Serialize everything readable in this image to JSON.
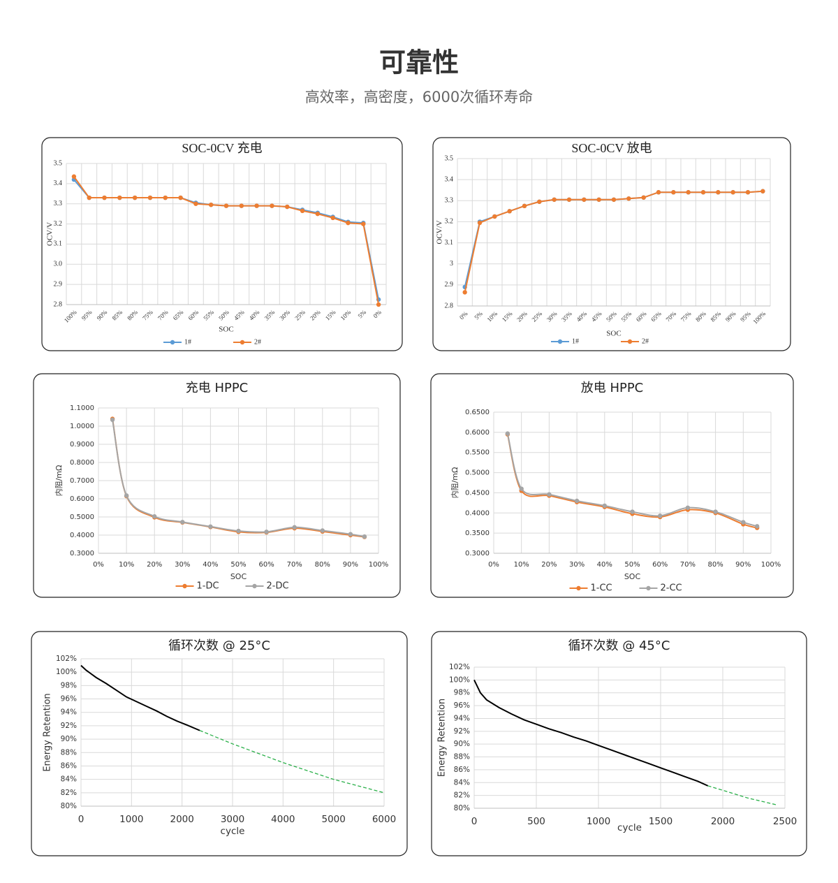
{
  "header": {
    "title": "可靠性",
    "subtitle": "高效率，高密度，6000次循环寿命"
  },
  "chart_data": [
    {
      "type": "line",
      "title": "SOC-0CV 充电",
      "x_label": "SOC",
      "y_label": "OCV/V",
      "categories": [
        "100%",
        "95%",
        "90%",
        "85%",
        "80%",
        "75%",
        "70%",
        "65%",
        "60%",
        "55%",
        "50%",
        "45%",
        "40%",
        "35%",
        "30%",
        "25%",
        "20%",
        "15%",
        "10%",
        "5%",
        "0%"
      ],
      "ylim": [
        2.8,
        3.5
      ],
      "yticks": [
        2.8,
        2.9,
        {
          "value": 3,
          "label": "3.0"
        },
        3.1,
        3.2,
        3.3,
        3.4,
        3.5
      ],
      "grid": true,
      "markers": true,
      "legend": "bottom",
      "series": [
        {
          "name": "1#",
          "color": "#5b9bd5",
          "values": [
            3.42,
            3.33,
            3.33,
            3.33,
            3.33,
            3.33,
            3.33,
            3.33,
            3.305,
            3.295,
            3.29,
            3.29,
            3.29,
            3.29,
            3.285,
            3.27,
            3.255,
            3.235,
            3.21,
            3.205,
            2.825
          ]
        },
        {
          "name": "2#",
          "color": "#ed7d31",
          "values": [
            3.435,
            3.33,
            3.33,
            3.33,
            3.33,
            3.33,
            3.33,
            3.33,
            3.3,
            3.295,
            3.29,
            3.29,
            3.29,
            3.29,
            3.285,
            3.265,
            3.25,
            3.23,
            3.205,
            3.2,
            2.8
          ]
        }
      ]
    },
    {
      "type": "line",
      "title": "SOC-0CV  放电",
      "x_label": "SOC",
      "y_label": "OCV/V",
      "categories": [
        "0%",
        "5%",
        "10%",
        "15%",
        "20%",
        "25%",
        "30%",
        "35%",
        "40%",
        "45%",
        "50%",
        "55%",
        "60%",
        "65%",
        "70%",
        "75%",
        "80%",
        "85%",
        "90%",
        "95%",
        "100%"
      ],
      "ylim": [
        2.8,
        3.5
      ],
      "yticks": [
        2.8,
        2.9,
        3,
        3.1,
        3.2,
        3.3,
        3.4,
        3.5
      ],
      "grid": true,
      "markers": true,
      "legend": "bottom",
      "series": [
        {
          "name": "1#",
          "color": "#5b9bd5",
          "values": [
            2.89,
            3.2,
            3.225,
            3.25,
            3.275,
            3.295,
            3.305,
            3.305,
            3.305,
            3.305,
            3.305,
            3.31,
            3.315,
            3.34,
            3.34,
            3.34,
            3.34,
            3.34,
            3.34,
            3.34,
            3.345
          ]
        },
        {
          "name": "2#",
          "color": "#ed7d31",
          "values": [
            2.865,
            3.195,
            3.225,
            3.25,
            3.275,
            3.295,
            3.305,
            3.305,
            3.305,
            3.305,
            3.305,
            3.31,
            3.315,
            3.34,
            3.34,
            3.34,
            3.34,
            3.34,
            3.34,
            3.34,
            3.345
          ]
        }
      ]
    },
    {
      "type": "line",
      "title": "充电 HPPC",
      "x_label": "SOC",
      "y_label": "内阻/mΩ",
      "x": [
        5,
        10,
        20,
        30,
        40,
        50,
        60,
        70,
        80,
        90,
        95
      ],
      "xlim": [
        0,
        100
      ],
      "xticks": [
        {
          "value": 0,
          "label": "0%"
        },
        {
          "value": 10,
          "label": "10%"
        },
        {
          "value": 20,
          "label": "20%"
        },
        {
          "value": 30,
          "label": "30%"
        },
        {
          "value": 40,
          "label": "40%"
        },
        {
          "value": 50,
          "label": "50%"
        },
        {
          "value": 60,
          "label": "60%"
        },
        {
          "value": 70,
          "label": "70%"
        },
        {
          "value": 80,
          "label": "80%"
        },
        {
          "value": 90,
          "label": "90%"
        },
        {
          "value": 100,
          "label": "100%"
        }
      ],
      "ylim": [
        0.3,
        1.1
      ],
      "yticks": [
        {
          "value": 0.3,
          "label": "0.3000"
        },
        {
          "value": 0.4,
          "label": "0.4000"
        },
        {
          "value": 0.5,
          "label": "0.5000"
        },
        {
          "value": 0.6,
          "label": "0.6000"
        },
        {
          "value": 0.7,
          "label": "0.7000"
        },
        {
          "value": 0.8,
          "label": "0.8000"
        },
        {
          "value": 0.9,
          "label": "0.9000"
        },
        {
          "value": 1,
          "label": "1.0000"
        },
        {
          "value": 1.1,
          "label": "1.1000"
        }
      ],
      "grid": true,
      "markers": true,
      "smooth": true,
      "legend": "bottom",
      "series": [
        {
          "name": "1-DC",
          "color": "#ed7d31",
          "values": [
            1.04,
            0.615,
            0.498,
            0.47,
            0.445,
            0.418,
            0.415,
            0.438,
            0.42,
            0.4,
            0.39
          ]
        },
        {
          "name": "2-DC",
          "color": "#a5a5a5",
          "values": [
            1.035,
            0.618,
            0.503,
            0.472,
            0.447,
            0.423,
            0.418,
            0.443,
            0.425,
            0.405,
            0.392
          ]
        }
      ]
    },
    {
      "type": "line",
      "title": "放电 HPPC",
      "x_label": "SOC",
      "y_label": "内阻/mΩ",
      "x": [
        5,
        10,
        20,
        30,
        40,
        50,
        60,
        70,
        80,
        90,
        95
      ],
      "xlim": [
        0,
        100
      ],
      "xticks": [
        {
          "value": 0,
          "label": "0%"
        },
        {
          "value": 10,
          "label": "10%"
        },
        {
          "value": 20,
          "label": "20%"
        },
        {
          "value": 30,
          "label": "30%"
        },
        {
          "value": 40,
          "label": "40%"
        },
        {
          "value": 50,
          "label": "50%"
        },
        {
          "value": 60,
          "label": "60%"
        },
        {
          "value": 70,
          "label": "70%"
        },
        {
          "value": 80,
          "label": "80%"
        },
        {
          "value": 90,
          "label": "90%"
        },
        {
          "value": 100,
          "label": "100%"
        }
      ],
      "ylim": [
        0.3,
        0.65
      ],
      "yticks": [
        {
          "value": 0.3,
          "label": "0.3000"
        },
        {
          "value": 0.35,
          "label": "0.3500"
        },
        {
          "value": 0.4,
          "label": "0.4000"
        },
        {
          "value": 0.45,
          "label": "0.4500"
        },
        {
          "value": 0.5,
          "label": "0.5000"
        },
        {
          "value": 0.55,
          "label": "0.5500"
        },
        {
          "value": 0.6,
          "label": "0.6000"
        },
        {
          "value": 0.65,
          "label": "0.6500"
        }
      ],
      "grid": true,
      "markers": true,
      "smooth": true,
      "legend": "bottom",
      "series": [
        {
          "name": "1-CC",
          "color": "#ed7d31",
          "values": [
            0.595,
            0.455,
            0.443,
            0.427,
            0.415,
            0.398,
            0.39,
            0.408,
            0.4,
            0.372,
            0.363
          ]
        },
        {
          "name": "2-CC",
          "color": "#a5a5a5",
          "values": [
            0.597,
            0.46,
            0.446,
            0.43,
            0.418,
            0.403,
            0.393,
            0.413,
            0.403,
            0.377,
            0.367
          ]
        }
      ]
    },
    {
      "type": "line",
      "title": "循环次数 @ 25°C",
      "x_label": "cycle",
      "y_label": "Energy Retention",
      "xlim": [
        0,
        6000
      ],
      "xticks": [
        0,
        1000,
        2000,
        3000,
        4000,
        5000,
        6000
      ],
      "ylim": [
        80,
        102
      ],
      "yticks": [
        {
          "value": 80,
          "label": "80%"
        },
        {
          "value": 82,
          "label": "82%"
        },
        {
          "value": 84,
          "label": "84%"
        },
        {
          "value": 86,
          "label": "86%"
        },
        {
          "value": 88,
          "label": "88%"
        },
        {
          "value": 90,
          "label": "90%"
        },
        {
          "value": 92,
          "label": "92%"
        },
        {
          "value": 94,
          "label": "94%"
        },
        {
          "value": 96,
          "label": "96%"
        },
        {
          "value": 98,
          "label": "98%"
        },
        {
          "value": 100,
          "label": "100%"
        },
        {
          "value": 102,
          "label": "102%"
        }
      ],
      "grid": true,
      "series": [
        {
          "color": "#000000",
          "x": [
            0,
            100,
            300,
            500,
            700,
            900,
            1100,
            1300,
            1500,
            1700,
            1900,
            2100,
            2350
          ],
          "values": [
            101,
            100.3,
            99.2,
            98.3,
            97.3,
            96.3,
            95.6,
            94.9,
            94.2,
            93.4,
            92.7,
            92.1,
            91.3
          ]
        },
        {
          "color": "#2bb04a",
          "dash": true,
          "x": [
            2350,
            3000,
            4000,
            5000,
            6000
          ],
          "values": [
            91.3,
            89.3,
            86.5,
            84,
            82
          ]
        }
      ]
    },
    {
      "type": "line",
      "title": "循环次数 @ 45°C",
      "x_label": "cycle",
      "y_label": "Energy Retention",
      "xlim": [
        0,
        2500
      ],
      "xticks": [
        0,
        500,
        1000,
        1500,
        2000,
        2500
      ],
      "ylim": [
        80,
        102
      ],
      "yticks": [
        {
          "value": 80,
          "label": "80%"
        },
        {
          "value": 82,
          "label": "82%"
        },
        {
          "value": 84,
          "label": "84%"
        },
        {
          "value": 86,
          "label": "86%"
        },
        {
          "value": 88,
          "label": "88%"
        },
        {
          "value": 90,
          "label": "90%"
        },
        {
          "value": 92,
          "label": "92%"
        },
        {
          "value": 94,
          "label": "94%"
        },
        {
          "value": 96,
          "label": "96%"
        },
        {
          "value": 98,
          "label": "98%"
        },
        {
          "value": 100,
          "label": "100%"
        },
        {
          "value": 102,
          "label": "102%"
        }
      ],
      "grid": true,
      "series": [
        {
          "color": "#000000",
          "x": [
            0,
            50,
            100,
            200,
            300,
            400,
            500,
            600,
            700,
            800,
            900,
            1000,
            1100,
            1200,
            1300,
            1400,
            1500,
            1600,
            1700,
            1800,
            1880
          ],
          "values": [
            100,
            98,
            96.9,
            95.7,
            94.7,
            93.8,
            93.1,
            92.4,
            91.8,
            91.1,
            90.5,
            89.8,
            89.1,
            88.4,
            87.7,
            87,
            86.3,
            85.6,
            84.9,
            84.2,
            83.5
          ]
        },
        {
          "color": "#2bb04a",
          "dash": true,
          "x": [
            1880,
            2000,
            2200,
            2440
          ],
          "values": [
            83.5,
            82.8,
            81.6,
            80.5
          ]
        }
      ]
    }
  ]
}
